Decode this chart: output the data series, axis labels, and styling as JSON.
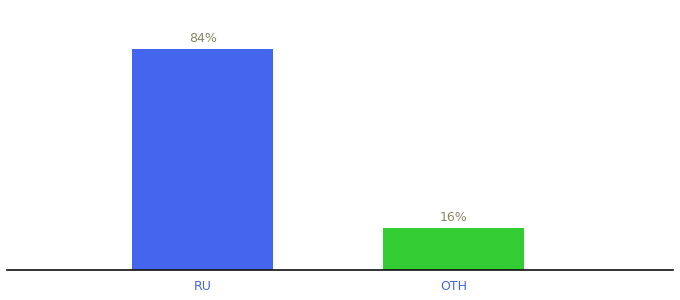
{
  "categories": [
    "RU",
    "OTH"
  ],
  "values": [
    84,
    16
  ],
  "bar_colors": [
    "#4466ee",
    "#33cc33"
  ],
  "label_texts": [
    "84%",
    "16%"
  ],
  "background_color": "#ffffff",
  "bar_width": 0.18,
  "ylim": [
    0,
    100
  ],
  "label_fontsize": 9,
  "tick_fontsize": 9,
  "tick_color": "#4466dd",
  "label_color": "#888866",
  "spine_color": "#111111",
  "x_positions": [
    0.3,
    0.62
  ]
}
